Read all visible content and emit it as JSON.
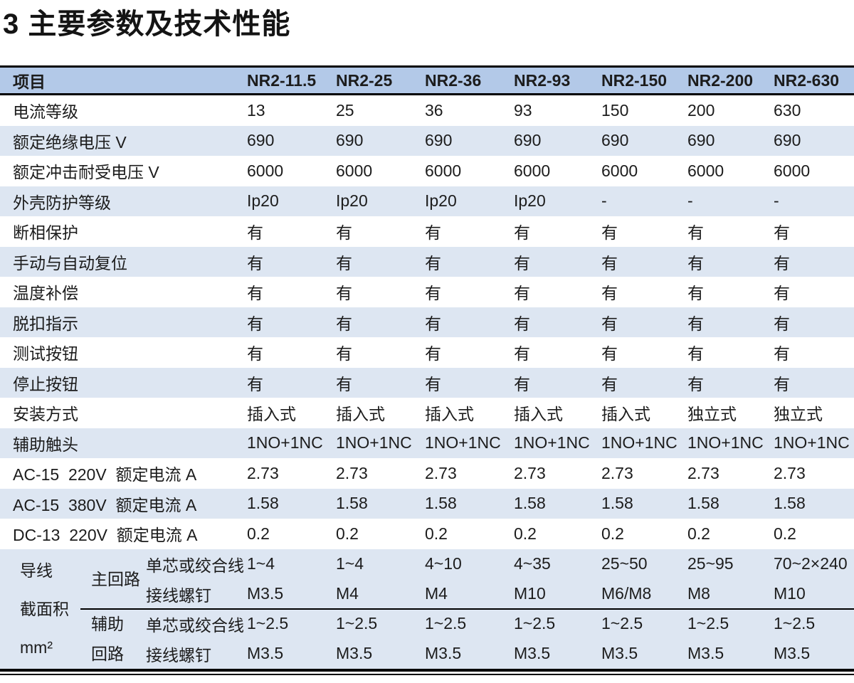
{
  "page": {
    "title": "3 主要参数及技术性能"
  },
  "colors": {
    "header_bg": "#b3c9e8",
    "stripe_bg": "#dde6f2",
    "text": "#1c1c1c",
    "border": "#000000"
  },
  "table": {
    "header": [
      "项目",
      "NR2-11.5",
      "NR2-25",
      "NR2-36",
      "NR2-93",
      "NR2-150",
      "NR2-200",
      "NR2-630"
    ],
    "rows": [
      {
        "label": "电流等级",
        "values": [
          "13",
          "25",
          "36",
          "93",
          "150",
          "200",
          "630"
        ]
      },
      {
        "label": "额定绝缘电压 V",
        "values": [
          "690",
          "690",
          "690",
          "690",
          "690",
          "690",
          "690"
        ]
      },
      {
        "label": "额定冲击耐受电压 V",
        "values": [
          "6000",
          "6000",
          "6000",
          "6000",
          "6000",
          "6000",
          "6000"
        ]
      },
      {
        "label": "外壳防护等级",
        "values": [
          "Ip20",
          "Ip20",
          "Ip20",
          "Ip20",
          "-",
          "-",
          "-"
        ]
      },
      {
        "label": "断相保护",
        "values": [
          "有",
          "有",
          "有",
          "有",
          "有",
          "有",
          "有"
        ]
      },
      {
        "label": "手动与自动复位",
        "values": [
          "有",
          "有",
          "有",
          "有",
          "有",
          "有",
          "有"
        ]
      },
      {
        "label": "温度补偿",
        "values": [
          "有",
          "有",
          "有",
          "有",
          "有",
          "有",
          "有"
        ]
      },
      {
        "label": "脱扣指示",
        "values": [
          "有",
          "有",
          "有",
          "有",
          "有",
          "有",
          "有"
        ]
      },
      {
        "label": "测试按钮",
        "values": [
          "有",
          "有",
          "有",
          "有",
          "有",
          "有",
          "有"
        ]
      },
      {
        "label": "停止按钮",
        "values": [
          "有",
          "有",
          "有",
          "有",
          "有",
          "有",
          "有"
        ]
      },
      {
        "label": "安装方式",
        "values": [
          "插入式",
          "插入式",
          "插入式",
          "插入式",
          "插入式",
          "独立式",
          "独立式"
        ]
      },
      {
        "label": "辅助触头",
        "values": [
          "1NO+1NC",
          "1NO+1NC",
          "1NO+1NC",
          "1NO+1NC",
          "1NO+1NC",
          "1NO+1NC",
          "1NO+1NC"
        ]
      },
      {
        "label": "AC-15  220V  额定电流 A",
        "values": [
          "2.73",
          "2.73",
          "2.73",
          "2.73",
          "2.73",
          "2.73",
          "2.73"
        ]
      },
      {
        "label": "AC-15  380V  额定电流 A",
        "values": [
          "1.58",
          "1.58",
          "1.58",
          "1.58",
          "1.58",
          "1.58",
          "1.58"
        ]
      },
      {
        "label": "DC-13  220V  额定电流 A",
        "values": [
          "0.2",
          "0.2",
          "0.2",
          "0.2",
          "0.2",
          "0.2",
          "0.2"
        ]
      }
    ],
    "wire_section": {
      "label_lines": [
        "导线",
        "截面积",
        "mm²"
      ],
      "groups": [
        {
          "name_lines": [
            "主回路"
          ],
          "rows": [
            {
              "label": "单芯或绞合线",
              "values": [
                "1~4",
                "1~4",
                "4~10",
                "4~35",
                "25~50",
                "25~95",
                "70~2×240"
              ]
            },
            {
              "label": "接线螺钉",
              "values": [
                "M3.5",
                "M4",
                "M4",
                "M10",
                "M6/M8",
                "M8",
                "M10"
              ]
            }
          ]
        },
        {
          "name_lines": [
            "辅助",
            "回路"
          ],
          "rows": [
            {
              "label": "单芯或绞合线",
              "values": [
                "1~2.5",
                "1~2.5",
                "1~2.5",
                "1~2.5",
                "1~2.5",
                "1~2.5",
                "1~2.5"
              ]
            },
            {
              "label": "接线螺钉",
              "values": [
                "M3.5",
                "M3.5",
                "M3.5",
                "M3.5",
                "M3.5",
                "M3.5",
                "M3.5"
              ]
            }
          ]
        }
      ]
    }
  }
}
